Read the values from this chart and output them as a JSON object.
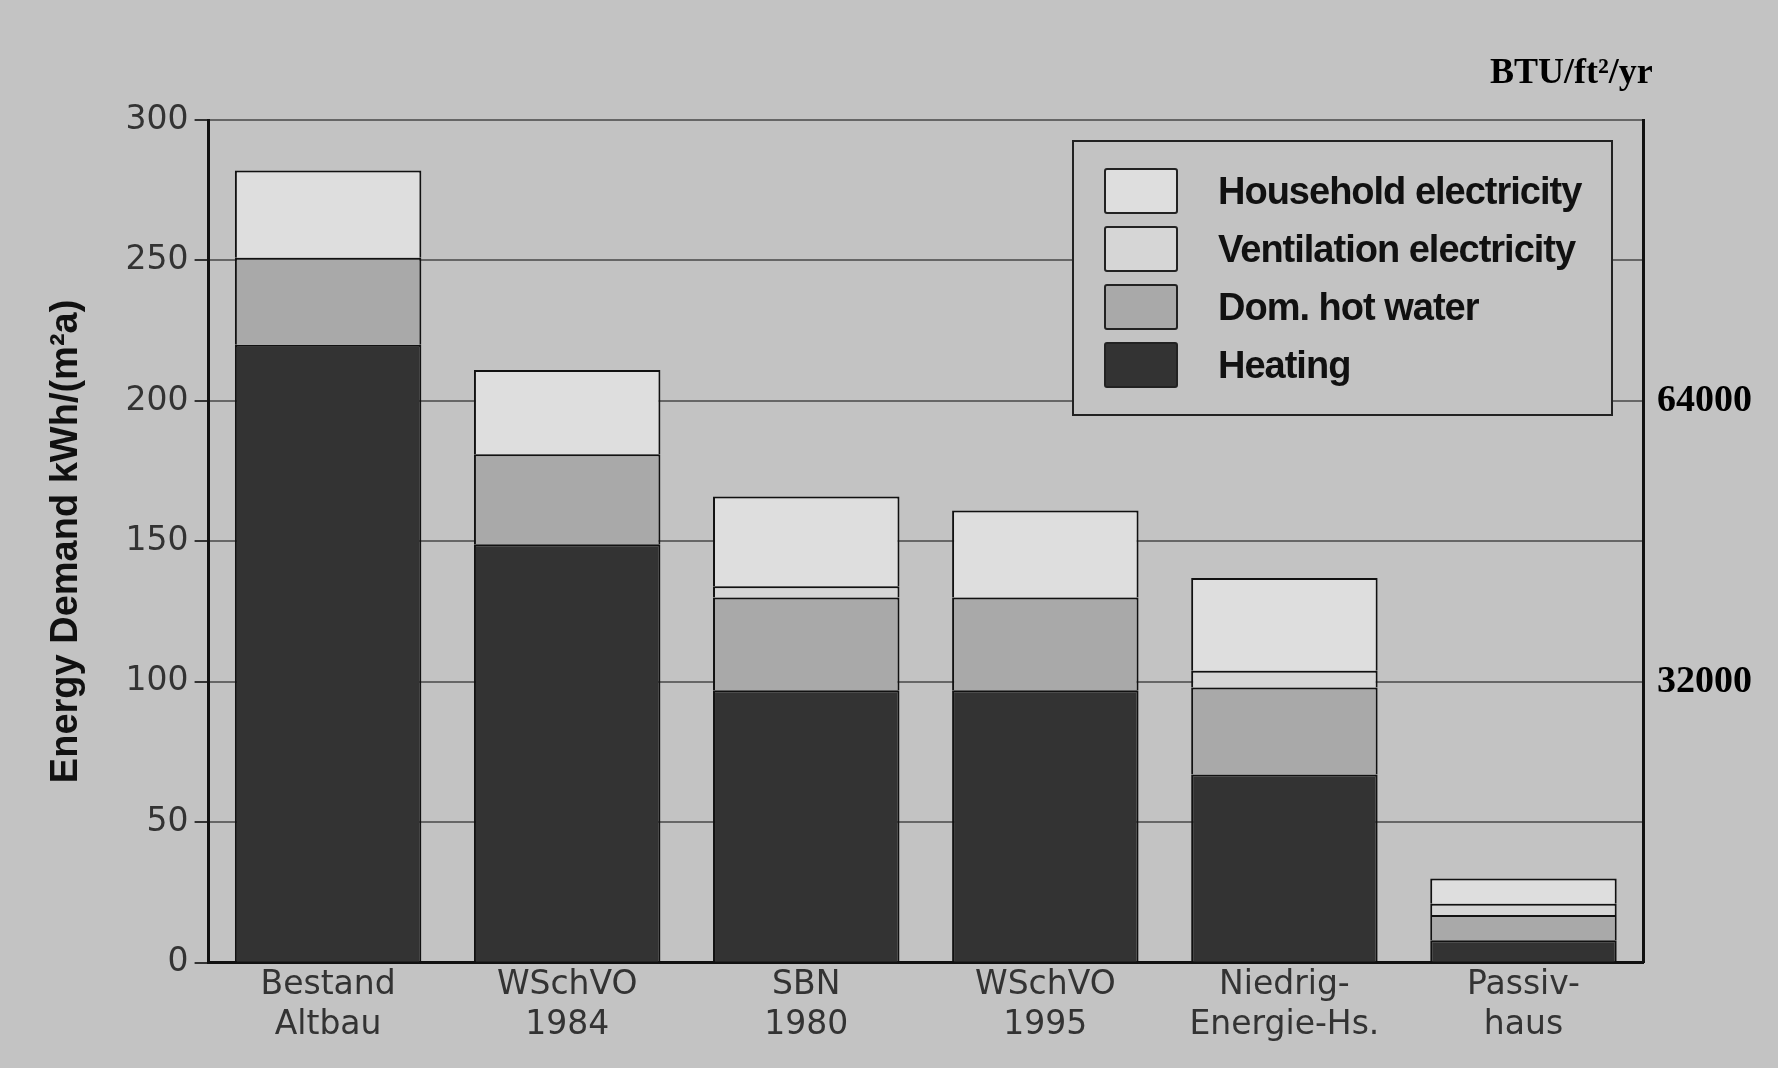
{
  "chart_data": {
    "type": "bar",
    "stacked": true,
    "ylabel": "Energy Demand kWh/(m²a)",
    "y2label": "BTU/ft²/yr",
    "categories": [
      "Bestand\nAltbau",
      "WSchVO\n1984",
      "SBN\n1980",
      "WSchVO\n1995",
      "Niedrig-\nEnergie-Hs.",
      "Passiv-\nhaus"
    ],
    "series": [
      {
        "name": "Heating",
        "color": "#333333",
        "values": [
          220,
          149,
          97,
          97,
          67,
          8
        ]
      },
      {
        "name": "Dom. hot water",
        "color": "#a9a9a9",
        "values": [
          31,
          32,
          33,
          33,
          31,
          9
        ]
      },
      {
        "name": "Ventilation electricity",
        "color": "#d6d6d6",
        "values": [
          0,
          0,
          4,
          0,
          6,
          4
        ]
      },
      {
        "name": "Household electricity",
        "color": "#dedede",
        "values": [
          31,
          30,
          32,
          31,
          33,
          9
        ]
      }
    ],
    "ylim": [
      0,
      300
    ],
    "yticks": [
      0,
      50,
      100,
      150,
      200,
      250,
      300
    ],
    "y2lim": [
      0,
      96000
    ],
    "y2ticks": [
      32000,
      64000
    ],
    "grid": "y",
    "legend": "top right"
  }
}
